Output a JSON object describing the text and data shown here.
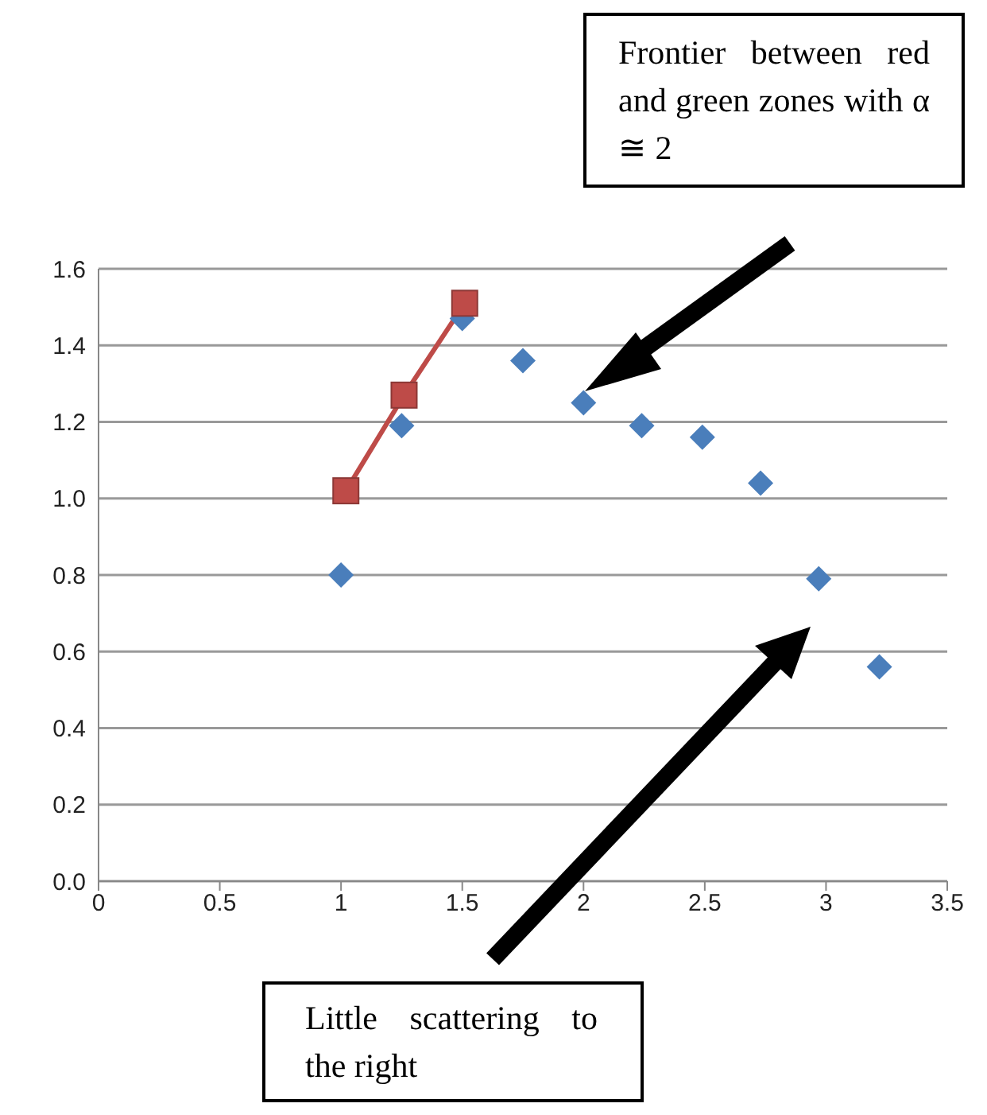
{
  "chart_data": {
    "type": "scatter",
    "series": [
      {
        "color": "#4a7ebb",
        "marker": "diamond",
        "x": [
          1,
          1.25,
          1.5,
          1.75,
          2,
          2.24,
          2.49,
          2.73,
          2.97,
          3.22
        ],
        "values": [
          0.8,
          1.19,
          1.47,
          1.36,
          1.25,
          1.19,
          1.16,
          1.04,
          0.79,
          0.56
        ]
      },
      {
        "type": "line",
        "color": "#be4b48",
        "marker": "square",
        "x": [
          1.02,
          1.26,
          1.51
        ],
        "values": [
          1.02,
          1.27,
          1.51
        ]
      }
    ],
    "xlim": [
      0,
      3.5
    ],
    "xticks": [
      0,
      0.5,
      1,
      1.5,
      2,
      2.5,
      3,
      3.5
    ],
    "ylim": [
      0,
      1.6
    ],
    "yticks": [
      {
        "value": 0,
        "label": "0.0"
      },
      {
        "value": 0.2,
        "label": "0.2"
      },
      {
        "value": 0.4,
        "label": "0.4"
      },
      {
        "value": 0.6,
        "label": "0.6"
      },
      {
        "value": 0.8,
        "label": "0.8"
      },
      {
        "value": 1,
        "label": "1.0"
      },
      {
        "value": 1.2,
        "label": "1.2"
      },
      {
        "value": 1.4,
        "label": "1.4"
      },
      {
        "value": 1.6,
        "label": "1.6"
      }
    ],
    "grid": "y",
    "legend": false,
    "annotations": [
      "Frontier between red and green zones with α ≅ 2",
      "Little scattering to the right"
    ]
  }
}
